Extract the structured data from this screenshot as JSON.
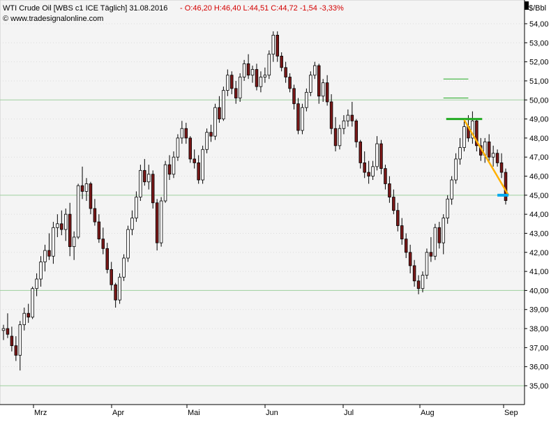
{
  "header": {
    "symbol": "WTI Crude Oil [WBS c1 ICE  Täglich] 31.08.2016",
    "ohlc": "- O:46,20  H:46,40  L:44,51  C:44,72  -1,54  -3,33%",
    "website": "© www.tradesignalonline.com",
    "unit": "$/Bbl"
  },
  "colors": {
    "up": "#ffffff",
    "down": "#7a1818",
    "wick": "#000000",
    "grid": "#9ecf9e",
    "plot_bg": "#f4f4f4",
    "ohlc_text": "#d40000",
    "yellow_trend": "#ffb000",
    "green_level": "#22aa22",
    "blue_level": "#00aaee"
  },
  "chart_data": {
    "type": "candlestick",
    "y_unit": "$/Bbl",
    "y_range": [
      34.6,
      55.0
    ],
    "y_ticks": [
      "54,00",
      "53,00",
      "52,00",
      "51,00",
      "50,00",
      "49,00",
      "48,00",
      "47,00",
      "46,00",
      "45,00",
      "44,00",
      "43,00",
      "42,00",
      "41,00",
      "40,00",
      "39,00",
      "38,00",
      "37,00",
      "36,00",
      "35,00"
    ],
    "x_ticks": [
      "Mrz",
      "Apr",
      "Mai",
      "Jun",
      "Jul",
      "Aug",
      "Sep"
    ],
    "highlight_gridlines": [
      50.0,
      45.0,
      40.0,
      35.0
    ],
    "candles": [
      [
        37.9,
        38.2,
        37.4,
        38.0
      ],
      [
        38.0,
        38.8,
        37.5,
        37.7
      ],
      [
        37.6,
        38.1,
        36.8,
        37.1
      ],
      [
        37.1,
        37.6,
        36.3,
        36.6
      ],
      [
        36.6,
        38.4,
        35.8,
        38.2
      ],
      [
        38.2,
        39.1,
        37.9,
        38.8
      ],
      [
        38.8,
        39.3,
        38.3,
        38.6
      ],
      [
        38.6,
        40.2,
        38.5,
        40.1
      ],
      [
        40.1,
        40.9,
        39.7,
        40.6
      ],
      [
        40.6,
        41.8,
        40.2,
        41.5
      ],
      [
        41.5,
        42.4,
        41.0,
        42.1
      ],
      [
        42.1,
        43.0,
        41.6,
        41.8
      ],
      [
        41.8,
        43.6,
        41.4,
        43.3
      ],
      [
        43.3,
        44.0,
        42.8,
        43.5
      ],
      [
        43.5,
        44.2,
        42.9,
        43.2
      ],
      [
        43.2,
        44.3,
        42.6,
        44.0
      ],
      [
        44.0,
        44.6,
        41.8,
        42.3
      ],
      [
        42.3,
        43.1,
        41.6,
        42.8
      ],
      [
        42.8,
        45.6,
        42.7,
        45.5
      ],
      [
        45.5,
        46.5,
        44.8,
        45.2
      ],
      [
        45.2,
        45.9,
        44.7,
        45.6
      ],
      [
        45.6,
        45.7,
        44.0,
        44.3
      ],
      [
        44.3,
        44.8,
        43.4,
        43.6
      ],
      [
        43.6,
        44.0,
        42.5,
        42.7
      ],
      [
        42.7,
        43.3,
        41.9,
        42.2
      ],
      [
        42.2,
        42.5,
        40.9,
        41.1
      ],
      [
        41.1,
        41.5,
        40.0,
        40.3
      ],
      [
        40.3,
        40.4,
        39.1,
        39.5
      ],
      [
        39.5,
        40.9,
        39.3,
        40.7
      ],
      [
        40.7,
        41.9,
        40.5,
        41.7
      ],
      [
        41.7,
        43.4,
        41.5,
        43.2
      ],
      [
        43.2,
        44.2,
        42.9,
        43.8
      ],
      [
        43.8,
        45.2,
        43.6,
        44.9
      ],
      [
        44.9,
        46.6,
        44.7,
        46.3
      ],
      [
        46.3,
        46.9,
        45.5,
        45.7
      ],
      [
        45.7,
        46.6,
        45.3,
        46.1
      ],
      [
        46.1,
        46.3,
        44.3,
        44.6
      ],
      [
        44.6,
        44.8,
        42.1,
        42.5
      ],
      [
        42.5,
        44.9,
        42.3,
        44.7
      ],
      [
        44.7,
        46.8,
        44.6,
        46.6
      ],
      [
        46.6,
        47.1,
        45.8,
        46.1
      ],
      [
        46.1,
        47.3,
        45.9,
        47.0
      ],
      [
        47.0,
        48.2,
        46.8,
        48.0
      ],
      [
        48.0,
        48.9,
        47.7,
        48.5
      ],
      [
        48.5,
        48.8,
        47.7,
        48.0
      ],
      [
        48.0,
        48.1,
        46.7,
        46.9
      ],
      [
        46.9,
        47.4,
        46.4,
        46.7
      ],
      [
        46.7,
        47.1,
        45.6,
        45.8
      ],
      [
        45.8,
        47.6,
        45.6,
        47.4
      ],
      [
        47.4,
        48.5,
        47.2,
        48.3
      ],
      [
        48.3,
        48.7,
        47.8,
        48.1
      ],
      [
        48.1,
        49.8,
        47.9,
        49.6
      ],
      [
        49.6,
        50.2,
        48.8,
        49.0
      ],
      [
        49.0,
        50.7,
        48.9,
        50.5
      ],
      [
        50.5,
        51.6,
        50.2,
        51.3
      ],
      [
        51.3,
        51.5,
        50.3,
        50.6
      ],
      [
        50.6,
        51.0,
        49.8,
        50.1
      ],
      [
        50.1,
        51.4,
        49.9,
        51.2
      ],
      [
        51.2,
        52.1,
        51.0,
        51.9
      ],
      [
        51.9,
        52.4,
        51.1,
        51.3
      ],
      [
        51.3,
        51.8,
        50.9,
        51.6
      ],
      [
        51.6,
        51.9,
        50.5,
        50.7
      ],
      [
        50.7,
        51.5,
        50.4,
        51.2
      ],
      [
        51.2,
        51.7,
        50.9,
        51.3
      ],
      [
        51.3,
        52.6,
        51.1,
        52.4
      ],
      [
        52.4,
        53.6,
        52.0,
        53.4
      ],
      [
        53.4,
        53.6,
        52.0,
        52.3
      ],
      [
        52.3,
        52.5,
        51.5,
        51.7
      ],
      [
        51.7,
        52.0,
        50.9,
        51.2
      ],
      [
        51.2,
        51.4,
        50.4,
        50.6
      ],
      [
        50.6,
        50.8,
        49.5,
        49.8
      ],
      [
        49.8,
        50.1,
        48.2,
        48.4
      ],
      [
        48.4,
        49.8,
        48.2,
        49.6
      ],
      [
        49.6,
        50.6,
        49.4,
        50.4
      ],
      [
        50.4,
        51.5,
        50.2,
        51.3
      ],
      [
        51.3,
        52.0,
        51.1,
        51.8
      ],
      [
        51.8,
        51.9,
        49.8,
        50.2
      ],
      [
        50.2,
        51.1,
        49.9,
        50.9
      ],
      [
        50.9,
        51.3,
        49.7,
        49.9
      ],
      [
        49.9,
        50.3,
        48.2,
        48.5
      ],
      [
        48.5,
        49.1,
        47.3,
        47.6
      ],
      [
        47.6,
        48.7,
        47.4,
        48.5
      ],
      [
        48.5,
        49.2,
        48.2,
        48.9
      ],
      [
        48.9,
        49.5,
        48.6,
        49.2
      ],
      [
        49.2,
        49.9,
        48.6,
        48.9
      ],
      [
        48.9,
        49.0,
        47.5,
        47.8
      ],
      [
        47.8,
        47.9,
        46.4,
        46.7
      ],
      [
        46.7,
        47.3,
        45.9,
        46.2
      ],
      [
        46.2,
        46.8,
        45.6,
        46.0
      ],
      [
        46.0,
        46.8,
        45.8,
        46.5
      ],
      [
        46.5,
        48.1,
        46.3,
        47.7
      ],
      [
        47.7,
        47.9,
        46.1,
        46.4
      ],
      [
        46.4,
        46.6,
        45.3,
        45.6
      ],
      [
        45.6,
        46.0,
        44.6,
        44.9
      ],
      [
        44.9,
        45.3,
        44.0,
        44.2
      ],
      [
        44.2,
        44.6,
        43.1,
        43.4
      ],
      [
        43.4,
        43.8,
        42.4,
        42.7
      ],
      [
        42.7,
        43.0,
        41.7,
        42.0
      ],
      [
        42.0,
        42.4,
        40.9,
        41.3
      ],
      [
        41.3,
        41.6,
        40.2,
        40.5
      ],
      [
        40.5,
        40.8,
        39.8,
        40.1
      ],
      [
        40.1,
        41.0,
        39.9,
        40.8
      ],
      [
        40.8,
        42.2,
        40.6,
        42.0
      ],
      [
        42.0,
        42.8,
        41.5,
        41.8
      ],
      [
        41.8,
        43.5,
        41.6,
        43.3
      ],
      [
        43.3,
        43.6,
        42.2,
        42.5
      ],
      [
        42.5,
        44.0,
        41.9,
        43.8
      ],
      [
        43.8,
        45.0,
        43.5,
        44.8
      ],
      [
        44.8,
        46.0,
        44.5,
        45.8
      ],
      [
        45.8,
        47.2,
        45.6,
        46.9
      ],
      [
        46.9,
        48.0,
        46.6,
        47.5
      ],
      [
        47.5,
        49.0,
        47.3,
        48.6
      ],
      [
        48.6,
        49.2,
        47.8,
        48.0
      ],
      [
        48.0,
        49.4,
        47.7,
        48.9
      ],
      [
        48.9,
        49.0,
        47.3,
        47.6
      ],
      [
        47.6,
        48.0,
        46.8,
        47.1
      ],
      [
        47.1,
        48.0,
        46.7,
        47.8
      ],
      [
        47.8,
        48.2,
        46.8,
        47.0
      ],
      [
        47.0,
        47.6,
        46.5,
        47.2
      ],
      [
        47.2,
        47.4,
        46.5,
        46.7
      ],
      [
        46.7,
        47.2,
        45.9,
        46.2
      ],
      [
        46.2,
        46.4,
        44.51,
        44.72
      ]
    ],
    "annotations": {
      "yellow_trendline": [
        [
          48.9,
          45.0
        ]
      ],
      "green_resistance": [
        49.0,
        51.1,
        50.1
      ],
      "blue_support": 45.0
    }
  }
}
